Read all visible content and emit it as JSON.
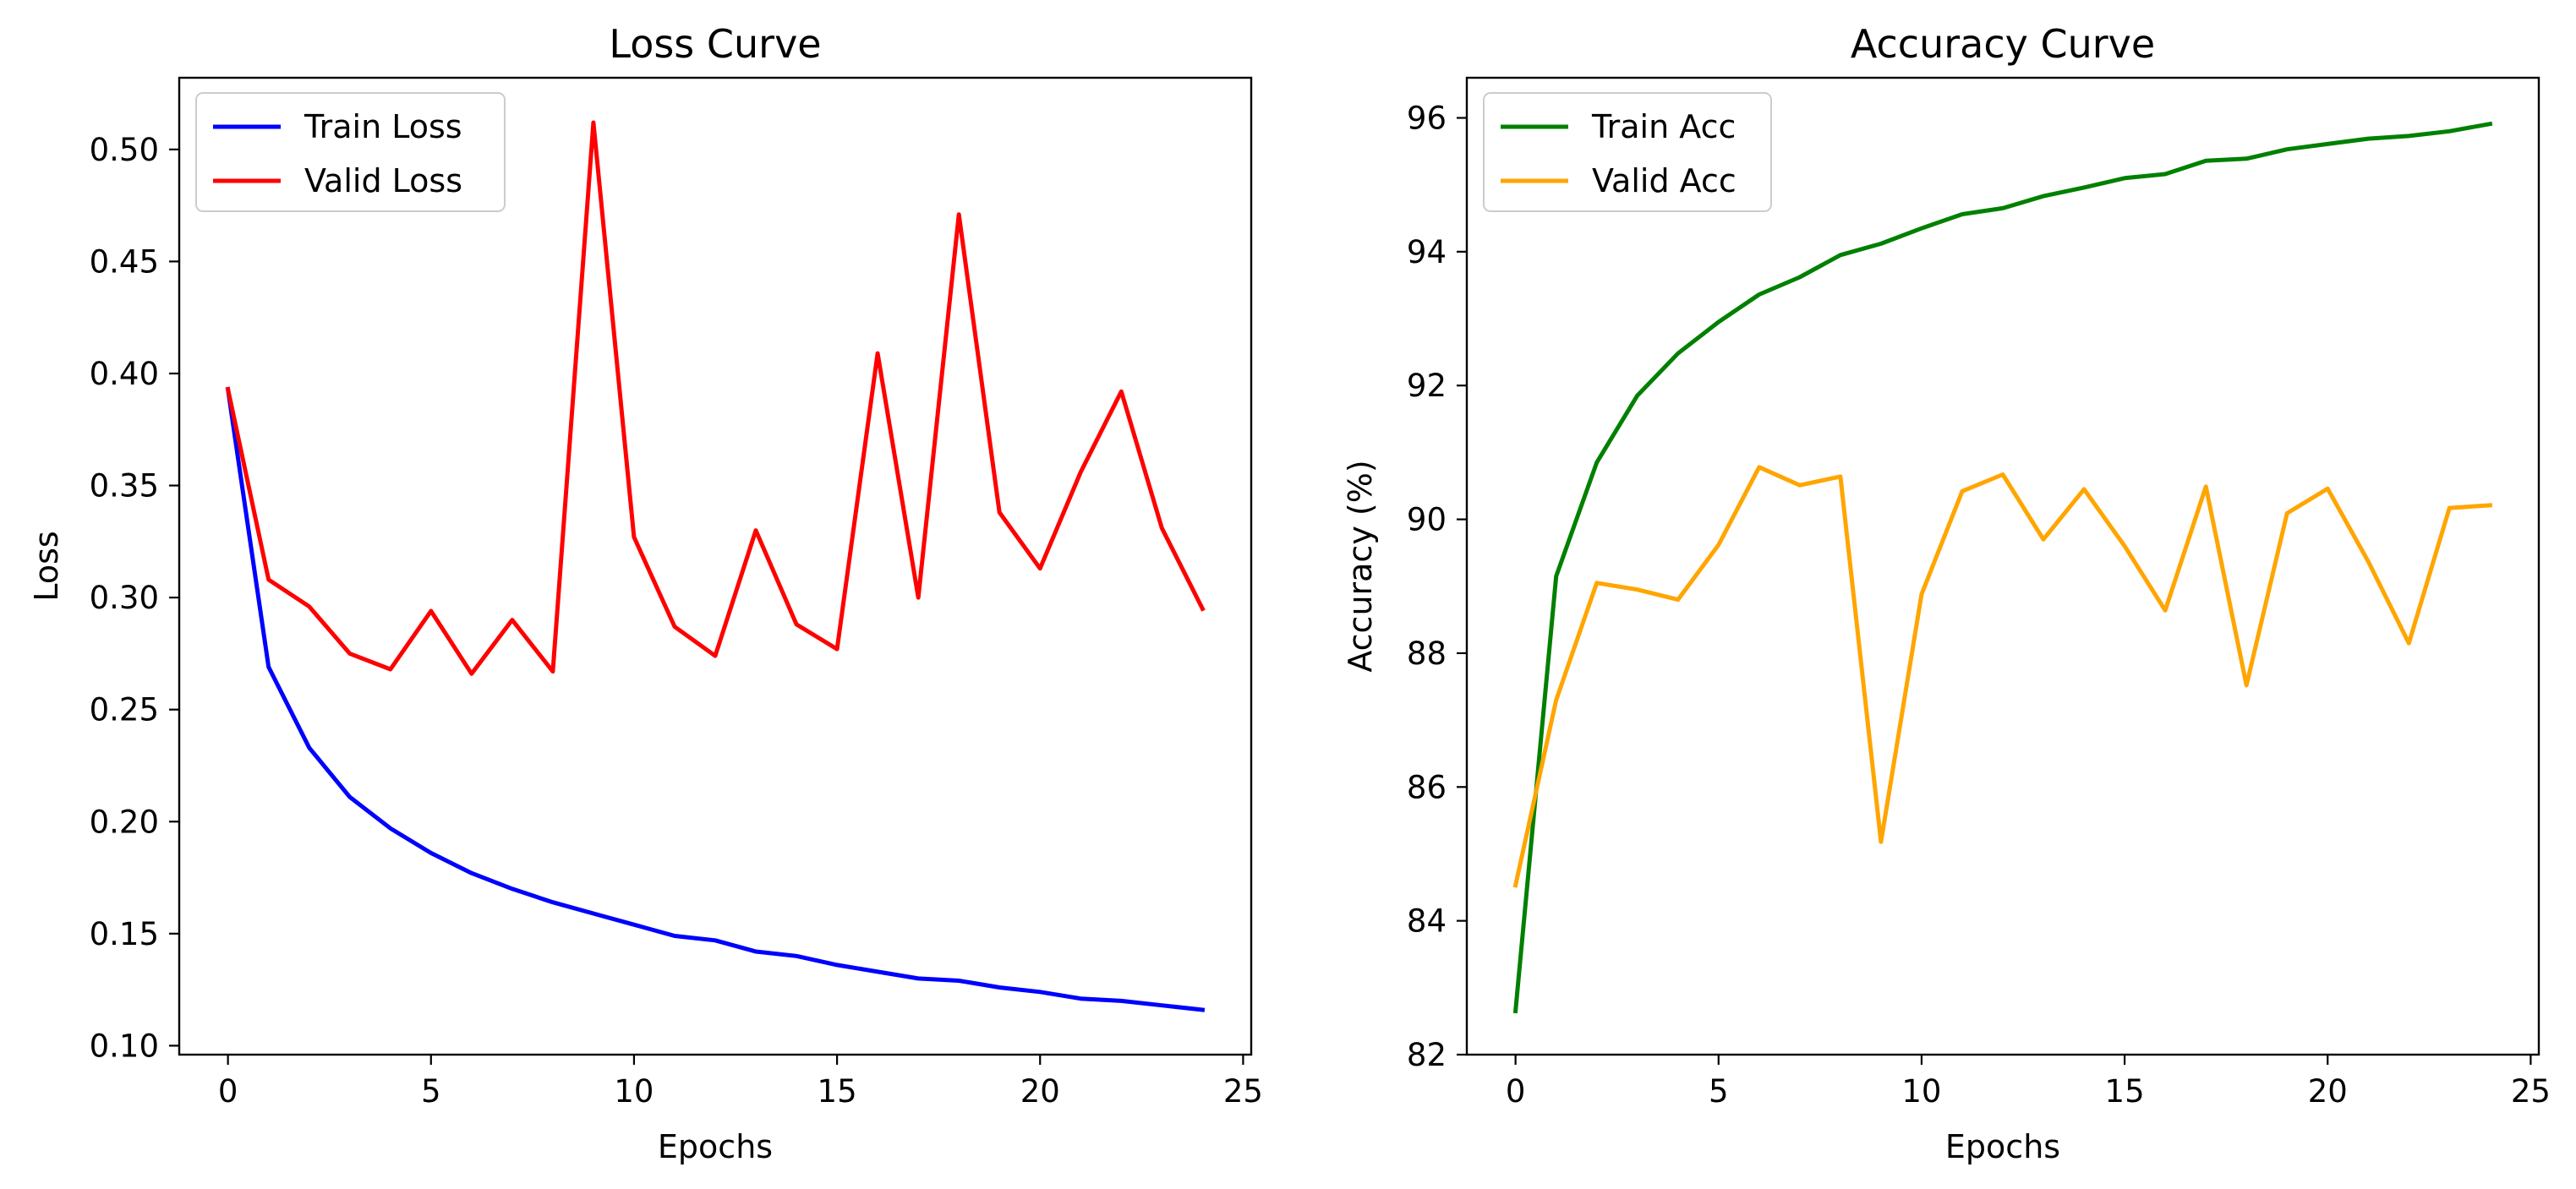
{
  "chart_data": [
    {
      "type": "line",
      "title": "Loss Curve",
      "xlabel": "Epochs",
      "ylabel": "Loss",
      "xlim": [
        -1.2,
        25.2
      ],
      "ylim": [
        0.096,
        0.532
      ],
      "xticks": [
        0,
        5,
        10,
        15,
        20,
        25
      ],
      "xtick_labels": [
        "0",
        "5",
        "10",
        "15",
        "20",
        "25"
      ],
      "yticks": [
        0.1,
        0.15,
        0.2,
        0.25,
        0.3,
        0.35,
        0.4,
        0.45,
        0.5
      ],
      "ytick_labels": [
        "0.10",
        "0.15",
        "0.20",
        "0.25",
        "0.30",
        "0.35",
        "0.40",
        "0.45",
        "0.50"
      ],
      "grid": false,
      "legend_position": "top-left",
      "x": [
        0,
        1,
        2,
        3,
        4,
        5,
        6,
        7,
        8,
        9,
        10,
        11,
        12,
        13,
        14,
        15,
        16,
        17,
        18,
        19,
        20,
        21,
        22,
        23,
        24
      ],
      "series": [
        {
          "name": "Train Loss",
          "color": "#0000ff",
          "values": [
            0.393,
            0.269,
            0.233,
            0.211,
            0.197,
            0.186,
            0.177,
            0.17,
            0.164,
            0.159,
            0.154,
            0.149,
            0.147,
            0.142,
            0.14,
            0.136,
            0.133,
            0.13,
            0.129,
            0.126,
            0.124,
            0.121,
            0.12,
            0.118,
            0.116
          ]
        },
        {
          "name": "Valid Loss",
          "color": "#ff0000",
          "values": [
            0.393,
            0.308,
            0.296,
            0.275,
            0.268,
            0.294,
            0.266,
            0.29,
            0.267,
            0.512,
            0.327,
            0.287,
            0.274,
            0.33,
            0.288,
            0.277,
            0.409,
            0.3,
            0.471,
            0.338,
            0.313,
            0.356,
            0.392,
            0.331,
            0.295
          ]
        }
      ]
    },
    {
      "type": "line",
      "title": "Accuracy Curve",
      "xlabel": "Epochs",
      "ylabel": "Accuracy (%)",
      "xlim": [
        -1.2,
        25.2
      ],
      "ylim": [
        82.0,
        96.6
      ],
      "xticks": [
        0,
        5,
        10,
        15,
        20,
        25
      ],
      "xtick_labels": [
        "0",
        "5",
        "10",
        "15",
        "20",
        "25"
      ],
      "yticks": [
        82,
        84,
        86,
        88,
        90,
        92,
        94,
        96
      ],
      "ytick_labels": [
        "82",
        "84",
        "86",
        "88",
        "90",
        "92",
        "94",
        "96"
      ],
      "grid": false,
      "legend_position": "top-left",
      "x": [
        0,
        1,
        2,
        3,
        4,
        5,
        6,
        7,
        8,
        9,
        10,
        11,
        12,
        13,
        14,
        15,
        16,
        17,
        18,
        19,
        20,
        21,
        22,
        23,
        24
      ],
      "series": [
        {
          "name": "Train Acc",
          "color": "#008000",
          "values": [
            82.65,
            89.15,
            90.85,
            91.85,
            92.48,
            92.95,
            93.36,
            93.62,
            93.95,
            94.12,
            94.35,
            94.56,
            94.65,
            94.83,
            94.96,
            95.1,
            95.16,
            95.36,
            95.39,
            95.53,
            95.61,
            95.69,
            95.73,
            95.8,
            95.91
          ]
        },
        {
          "name": "Valid Acc",
          "color": "#ffa500",
          "values": [
            84.53,
            87.3,
            89.05,
            88.95,
            88.8,
            89.62,
            90.78,
            90.51,
            90.64,
            85.18,
            88.88,
            90.42,
            90.67,
            89.7,
            90.45,
            89.6,
            88.64,
            90.49,
            87.52,
            90.09,
            90.46,
            89.37,
            88.15,
            90.17,
            90.21
          ]
        }
      ]
    }
  ]
}
